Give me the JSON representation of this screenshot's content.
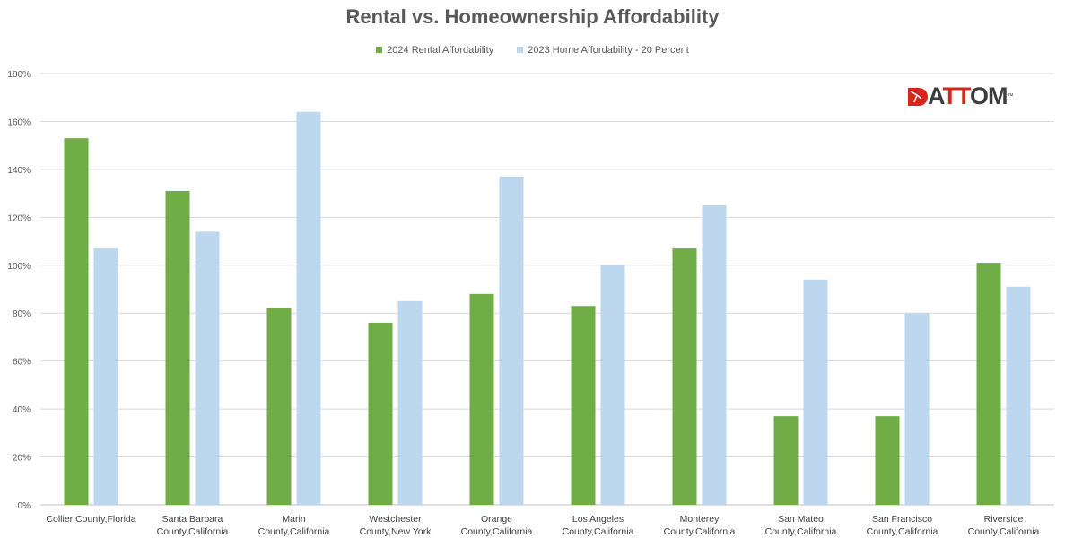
{
  "chart_data": {
    "type": "bar",
    "title": "Rental vs. Homeownership Affordability",
    "categories": [
      [
        "Collier County,Florida"
      ],
      [
        "Santa Barbara",
        "County,California"
      ],
      [
        "Marin",
        "County,California"
      ],
      [
        "Westchester",
        "County,New York"
      ],
      [
        "Orange",
        "County,California"
      ],
      [
        "Los Angeles",
        "County,California"
      ],
      [
        "Monterey",
        "County,California"
      ],
      [
        "San Mateo",
        "County,California"
      ],
      [
        "San Francisco",
        "County,California"
      ],
      [
        "Riverside",
        "County,California"
      ]
    ],
    "series": [
      {
        "name": "2024 Rental Affordability",
        "color": "#70ad47",
        "values": [
          153,
          131,
          82,
          76,
          88,
          83,
          107,
          37,
          37,
          101
        ]
      },
      {
        "name": "2023 Home Affordability - 20 Percent",
        "color": "#bdd7ee",
        "values": [
          107,
          114,
          164,
          85,
          137,
          100,
          125,
          94,
          80,
          91
        ]
      }
    ],
    "ylim": [
      0,
      180
    ],
    "yticks": [
      0,
      20,
      40,
      60,
      80,
      100,
      120,
      140,
      160,
      180
    ],
    "ytick_format": "%",
    "grid": true,
    "legend_position": "top"
  },
  "logo": {
    "text": "ATTOM",
    "tm": "™"
  }
}
